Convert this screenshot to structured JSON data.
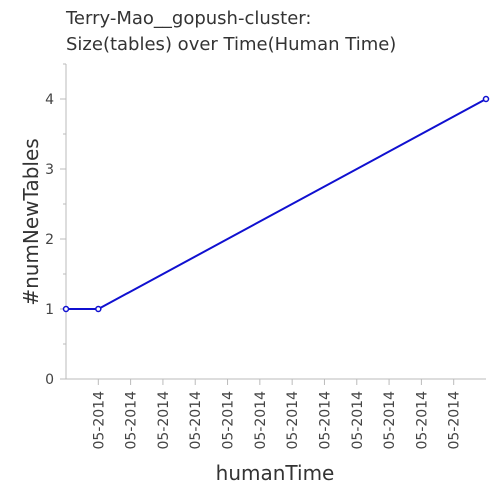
{
  "chart_data": {
    "type": "line",
    "title_line1": "Terry-Mao__gopush-cluster:",
    "title_line2": "Size(tables) over Time(Human Time)",
    "xlabel": "humanTime",
    "ylabel": "#numNewTables",
    "x_tick_labels": [
      "05-2014",
      "05-2014",
      "05-2014",
      "05-2014",
      "05-2014",
      "05-2014",
      "05-2014",
      "05-2014",
      "05-2014",
      "05-2014",
      "05-2014",
      "05-2014"
    ],
    "y_ticks": [
      0,
      1,
      2,
      3,
      4
    ],
    "ylim": [
      0,
      4.5
    ],
    "grid": false,
    "series": [
      {
        "color": "#1010d0",
        "points": [
          {
            "x": 0,
            "y": 1
          },
          {
            "x": 1,
            "y": 1
          },
          {
            "x": 13,
            "y": 4
          }
        ]
      }
    ],
    "xlim": [
      0,
      13
    ]
  }
}
